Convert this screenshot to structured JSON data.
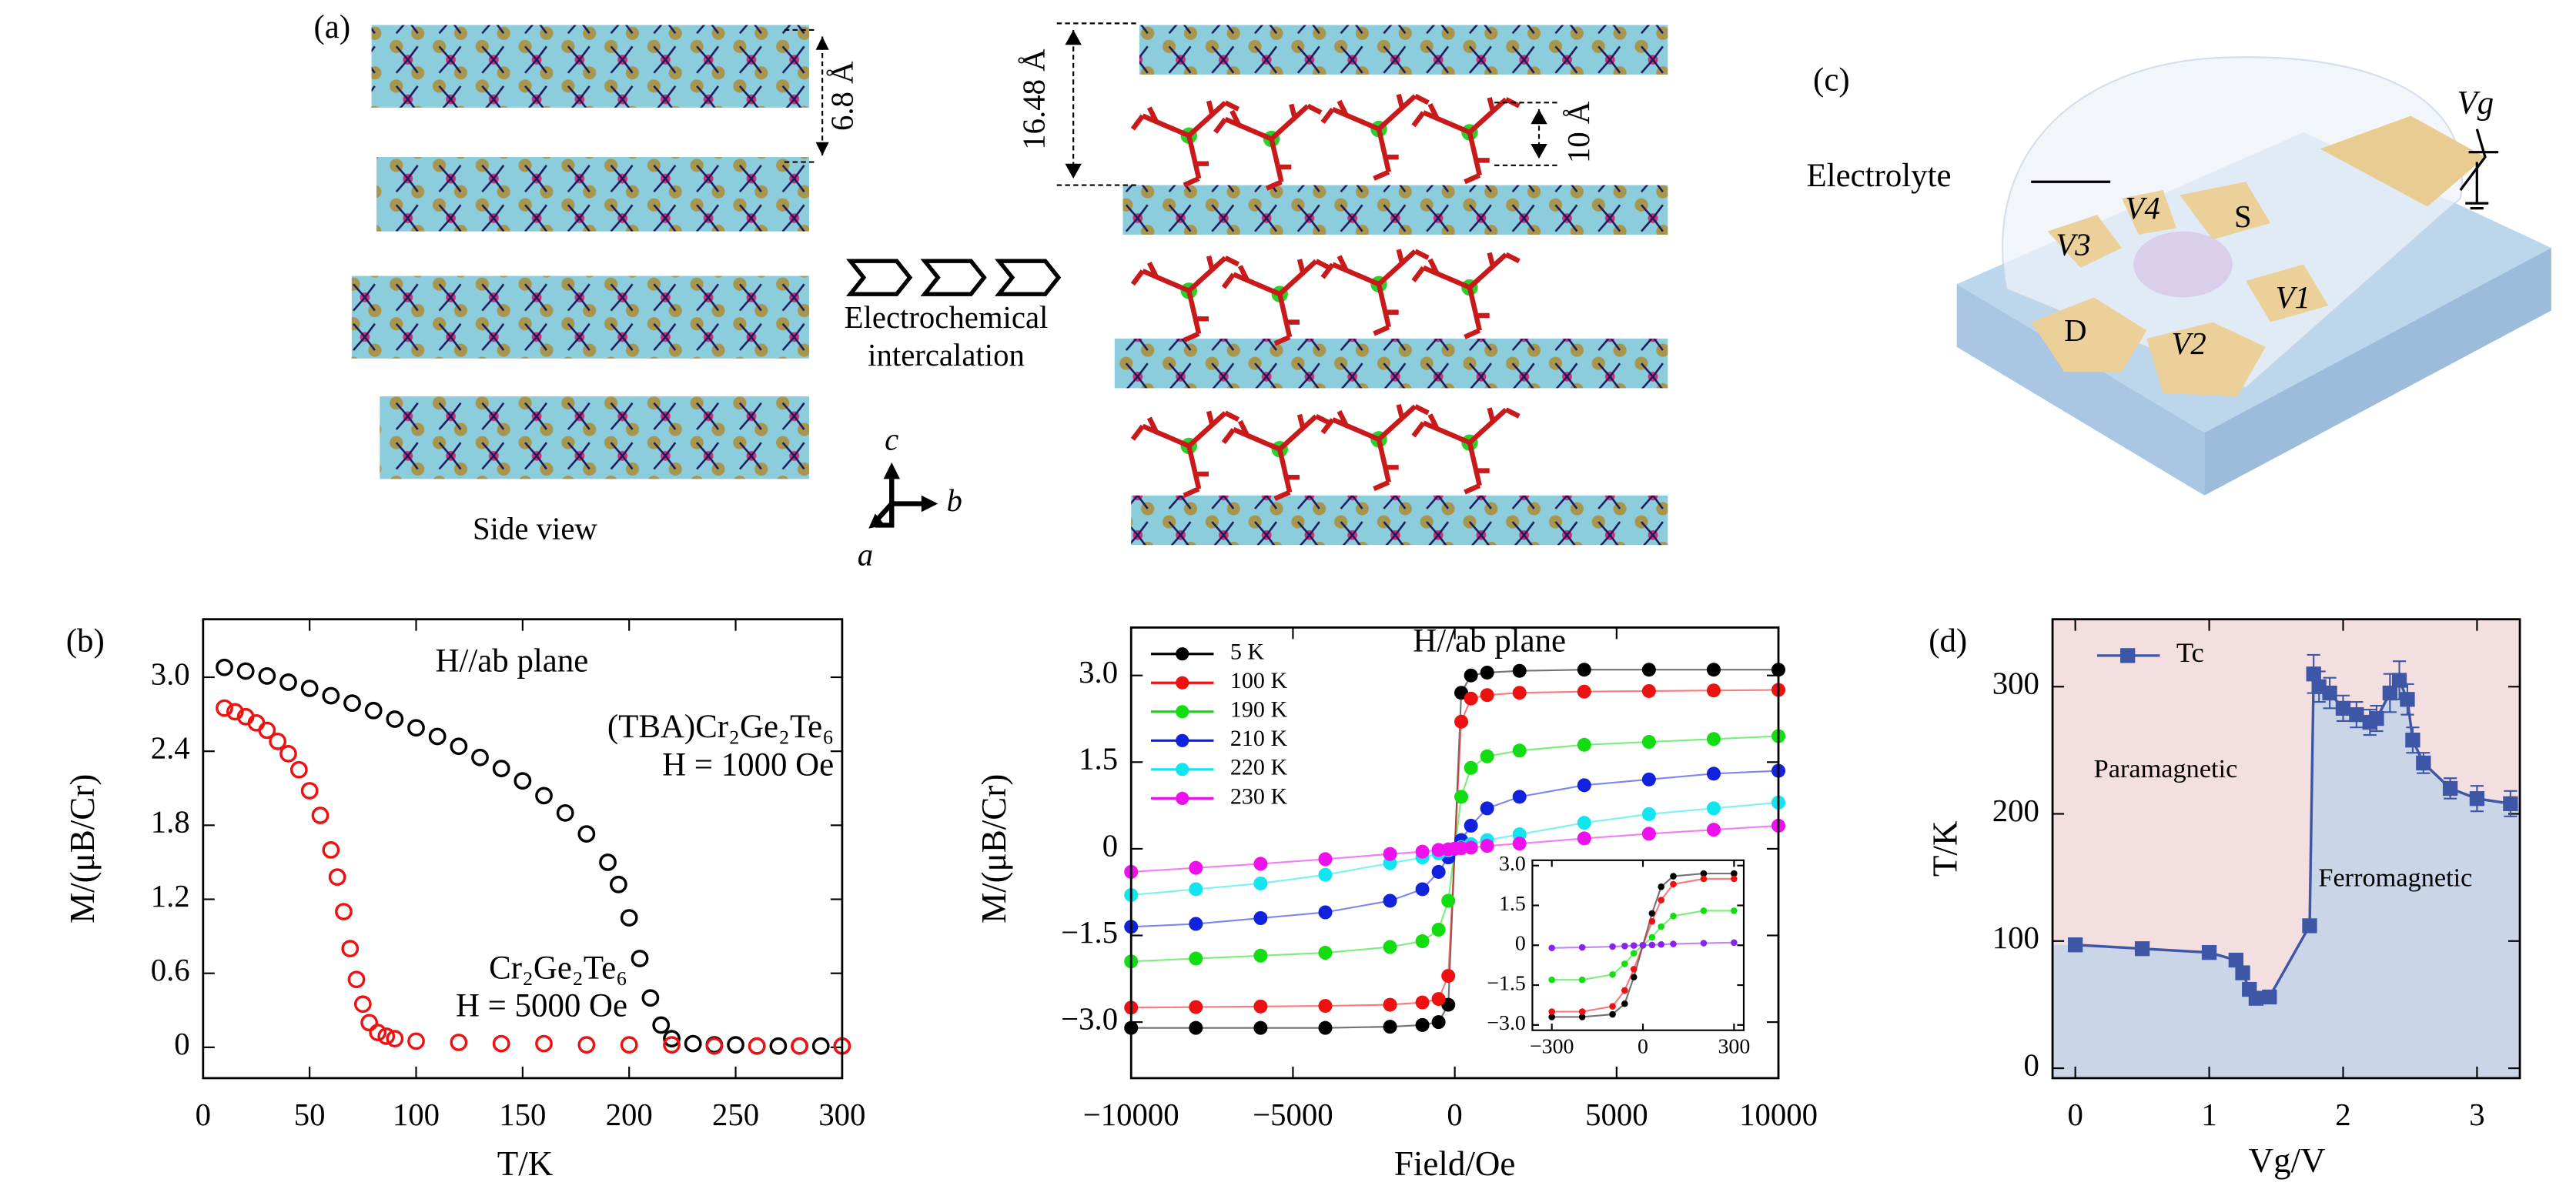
{
  "figure": {
    "a": {
      "label": "(a)",
      "side_gap": "6.8 Å",
      "interlayer": "16.48 Å",
      "molecule": "10 Å",
      "process": [
        "Electrochemical",
        "intercalation"
      ],
      "view": "Side view",
      "axes": [
        "c",
        "b",
        "a"
      ]
    },
    "b": {
      "label": "(b)"
    },
    "c": {
      "label": "(c)",
      "electrolyte": "Electrolyte",
      "gate": "Vg",
      "contacts": [
        "V4",
        "V3",
        "S",
        "V1",
        "V2",
        "D"
      ]
    },
    "d": {
      "label": "(d)"
    }
  },
  "chart_data": [
    {
      "type": "scatter",
      "xlabel": "T/K",
      "ylabel": "M/(μB/Cr)",
      "xlim": [
        0,
        300
      ],
      "ylim": [
        -0.25,
        3.47
      ],
      "xticks": [
        0,
        50,
        100,
        150,
        200,
        250,
        300
      ],
      "yticks": [
        0,
        0.6,
        1.2,
        1.8,
        2.4,
        {
          "value": 3.0,
          "label": "3.0"
        }
      ],
      "marker": "open-circle",
      "annotations": [
        "H//ab plane",
        "(TBA)Cr₂Ge₂Te₆",
        "H = 1000 Oe",
        "Cr₂Ge₂Te₆",
        "H = 5000 Oe"
      ],
      "series": [
        {
          "color": "#000000",
          "x": [
            10,
            20,
            30,
            40,
            50,
            60,
            70,
            80,
            90,
            100,
            110,
            120,
            130,
            140,
            150,
            160,
            170,
            180,
            190,
            195,
            200,
            205,
            210,
            215,
            220,
            230,
            240,
            250,
            260,
            270,
            280,
            290,
            300
          ],
          "values": [
            3.08,
            3.05,
            3.01,
            2.96,
            2.91,
            2.85,
            2.79,
            2.73,
            2.66,
            2.59,
            2.52,
            2.44,
            2.35,
            2.26,
            2.16,
            2.04,
            1.9,
            1.73,
            1.5,
            1.32,
            1.05,
            0.72,
            0.4,
            0.18,
            0.07,
            0.03,
            0.02,
            0.02,
            0.01,
            0.01,
            0.01,
            0.01,
            0.01
          ]
        },
        {
          "color": "#ee1111",
          "x": [
            10,
            15,
            20,
            25,
            30,
            35,
            40,
            45,
            50,
            55,
            60,
            63,
            66,
            69,
            72,
            75,
            78,
            82,
            86,
            90,
            100,
            120,
            140,
            160,
            180,
            200,
            220,
            240,
            260,
            280,
            300
          ],
          "values": [
            2.75,
            2.72,
            2.68,
            2.63,
            2.57,
            2.48,
            2.38,
            2.25,
            2.08,
            1.88,
            1.6,
            1.38,
            1.1,
            0.8,
            0.55,
            0.35,
            0.2,
            0.12,
            0.09,
            0.07,
            0.05,
            0.04,
            0.03,
            0.03,
            0.02,
            0.02,
            0.02,
            0.01,
            0.01,
            0.01,
            0.01
          ]
        }
      ]
    },
    {
      "type": "line",
      "xlabel": "Field/Oe",
      "ylabel": "M/(μB/Cr)",
      "xlim": [
        -10000,
        10000
      ],
      "ylim": [
        -3.97,
        3.83
      ],
      "xticks": [
        {
          "value": -10000,
          "label": "−10000"
        },
        {
          "value": -5000,
          "label": "−5000"
        },
        0,
        5000,
        10000
      ],
      "yticks": [
        {
          "value": -3.0,
          "label": "−3.0"
        },
        {
          "value": -1.5,
          "label": "−1.5"
        },
        0,
        1.5,
        {
          "value": 3.0,
          "label": "3.0"
        }
      ],
      "marker": "circle",
      "legend": "upper left",
      "annotations": [
        "H//ab plane"
      ],
      "x": [
        -10000,
        -8000,
        -6000,
        -4000,
        -2000,
        -1000,
        -500,
        -200,
        0,
        200,
        500,
        1000,
        2000,
        4000,
        6000,
        8000,
        10000
      ],
      "series": [
        {
          "name": "5 K",
          "color": "#000000",
          "values": [
            -3.1,
            -3.1,
            -3.1,
            -3.1,
            -3.08,
            -3.05,
            -3.0,
            -2.7,
            0,
            2.7,
            3.0,
            3.05,
            3.08,
            3.1,
            3.1,
            3.1,
            3.1
          ]
        },
        {
          "name": "100 K",
          "color": "#ee1111",
          "values": [
            -2.75,
            -2.74,
            -2.73,
            -2.72,
            -2.7,
            -2.66,
            -2.6,
            -2.2,
            0,
            2.2,
            2.6,
            2.66,
            2.7,
            2.72,
            2.73,
            2.74,
            2.75
          ]
        },
        {
          "name": "190 K",
          "color": "#11dd11",
          "values": [
            -1.95,
            -1.9,
            -1.85,
            -1.8,
            -1.7,
            -1.6,
            -1.4,
            -0.9,
            0,
            0.9,
            1.4,
            1.6,
            1.7,
            1.8,
            1.85,
            1.9,
            1.95
          ]
        },
        {
          "name": "210 K",
          "color": "#1122dd",
          "values": [
            -1.35,
            -1.3,
            -1.2,
            -1.1,
            -0.9,
            -0.7,
            -0.4,
            -0.15,
            0,
            0.15,
            0.4,
            0.7,
            0.9,
            1.1,
            1.2,
            1.3,
            1.35
          ]
        },
        {
          "name": "220 K",
          "color": "#11e5f0",
          "values": [
            -0.8,
            -0.7,
            -0.6,
            -0.45,
            -0.25,
            -0.15,
            -0.08,
            -0.03,
            0,
            0.03,
            0.08,
            0.15,
            0.25,
            0.45,
            0.6,
            0.7,
            0.8
          ]
        },
        {
          "name": "230 K",
          "color": "#ee11ee",
          "values": [
            -0.4,
            -0.33,
            -0.26,
            -0.18,
            -0.09,
            -0.05,
            -0.02,
            -0.01,
            0,
            0.01,
            0.02,
            0.05,
            0.09,
            0.18,
            0.26,
            0.33,
            0.4
          ]
        }
      ]
    },
    {
      "type": "line",
      "xlabel": "Vg/V",
      "ylabel": "T/K",
      "xlim": [
        -0.17,
        3.32
      ],
      "ylim": [
        -7.8,
        353
      ],
      "xticks": [
        0,
        1,
        2,
        3
      ],
      "yticks": [
        0,
        100,
        200,
        300
      ],
      "marker": "square",
      "legend": "upper left",
      "background": "#f4dfe0",
      "fill_below": "#cbd5e8",
      "annotations": [
        "Paramagnetic",
        "Ferromagnetic"
      ],
      "x": [
        0,
        0.5,
        1,
        1.2,
        1.25,
        1.3,
        1.35,
        1.45,
        1.75,
        1.78,
        1.82,
        1.9,
        2.0,
        2.1,
        2.2,
        2.25,
        2.35,
        2.42,
        2.48,
        2.52,
        2.6,
        2.8,
        3.0,
        3.25
      ],
      "series": [
        {
          "name": "Tc",
          "color": "#3e56a6",
          "values": [
            97,
            94,
            91,
            85,
            75,
            62,
            55,
            56,
            112,
            310,
            300,
            295,
            283,
            278,
            272,
            275,
            295,
            305,
            290,
            258,
            240,
            220,
            212,
            208
          ],
          "errors": [
            5,
            4,
            4,
            5,
            5,
            5,
            4,
            4,
            5,
            15,
            12,
            12,
            10,
            10,
            10,
            10,
            15,
            15,
            12,
            10,
            8,
            8,
            10,
            10
          ]
        }
      ]
    },
    {
      "type": "line",
      "xlim": [
        -364,
        332
      ],
      "ylim": [
        -3.2,
        3.2
      ],
      "xticks": [
        {
          "value": -300,
          "label": "−300"
        },
        0,
        300
      ],
      "yticks": [
        {
          "value": -3.0,
          "label": "−3.0"
        },
        {
          "value": -1.5,
          "label": "−1.5"
        },
        0,
        1.5,
        {
          "value": 3.0,
          "label": "3.0"
        }
      ],
      "marker": "circle",
      "x": [
        -300,
        -200,
        -100,
        -60,
        -30,
        0,
        30,
        60,
        100,
        200,
        300
      ],
      "series": [
        {
          "color": "#000000",
          "values": [
            -2.7,
            -2.7,
            -2.6,
            -2.2,
            -1.2,
            0,
            1.2,
            2.2,
            2.6,
            2.7,
            2.7
          ]
        },
        {
          "color": "#ee1111",
          "values": [
            -2.5,
            -2.5,
            -2.3,
            -1.7,
            -0.9,
            0,
            0.9,
            1.7,
            2.3,
            2.5,
            2.5
          ]
        },
        {
          "color": "#11dd11",
          "values": [
            -1.3,
            -1.3,
            -1.1,
            -0.7,
            -0.3,
            0,
            0.3,
            0.7,
            1.1,
            1.3,
            1.3
          ]
        },
        {
          "color": "#8822ee",
          "values": [
            -0.1,
            -0.08,
            -0.05,
            -0.03,
            -0.01,
            0,
            0.01,
            0.03,
            0.05,
            0.08,
            0.1
          ]
        }
      ]
    }
  ]
}
